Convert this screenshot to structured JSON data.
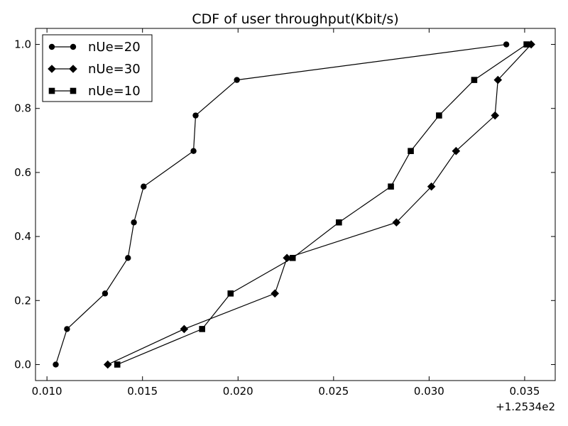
{
  "chart_data": {
    "type": "line",
    "title": "CDF of user throughput(Kbit/s)",
    "xlabel": "",
    "ylabel": "",
    "x_offset_label": "+1.2534e2",
    "xlim": [
      0.0094,
      0.0366
    ],
    "ylim": [
      -0.05,
      1.05
    ],
    "x_ticks": [
      0.01,
      0.015,
      0.02,
      0.025,
      0.03,
      0.035
    ],
    "x_tick_labels": [
      "0.010",
      "0.015",
      "0.020",
      "0.025",
      "0.030",
      "0.035"
    ],
    "y_ticks": [
      0.0,
      0.2,
      0.4,
      0.6,
      0.8,
      1.0
    ],
    "y_tick_labels": [
      "0.0",
      "0.2",
      "0.4",
      "0.6",
      "0.8",
      "1.0"
    ],
    "grid": false,
    "legend_position": "top-left",
    "series": [
      {
        "name": "nUe=20",
        "marker": "circle",
        "color": "#000000",
        "x": [
          0.01046,
          0.01105,
          0.01304,
          0.01424,
          0.01455,
          0.01506,
          0.01767,
          0.01778,
          0.01994,
          0.03404
        ],
        "y": [
          0.0,
          0.111,
          0.222,
          0.333,
          0.444,
          0.556,
          0.667,
          0.778,
          0.889,
          1.0
        ]
      },
      {
        "name": "nUe=30",
        "marker": "diamond",
        "color": "#000000",
        "x": [
          0.01318,
          0.01718,
          0.02193,
          0.02256,
          0.02829,
          0.03012,
          0.03141,
          0.03345,
          0.0336,
          0.03534
        ],
        "y": [
          0.0,
          0.111,
          0.222,
          0.333,
          0.444,
          0.556,
          0.667,
          0.778,
          0.889,
          1.0
        ]
      },
      {
        "name": "nUe=10",
        "marker": "square",
        "color": "#000000",
        "x": [
          0.01368,
          0.01812,
          0.01961,
          0.02286,
          0.02528,
          0.028,
          0.02904,
          0.03052,
          0.03236,
          0.0351
        ],
        "y": [
          0.0,
          0.111,
          0.222,
          0.333,
          0.444,
          0.556,
          0.667,
          0.778,
          0.889,
          1.0
        ]
      }
    ]
  }
}
